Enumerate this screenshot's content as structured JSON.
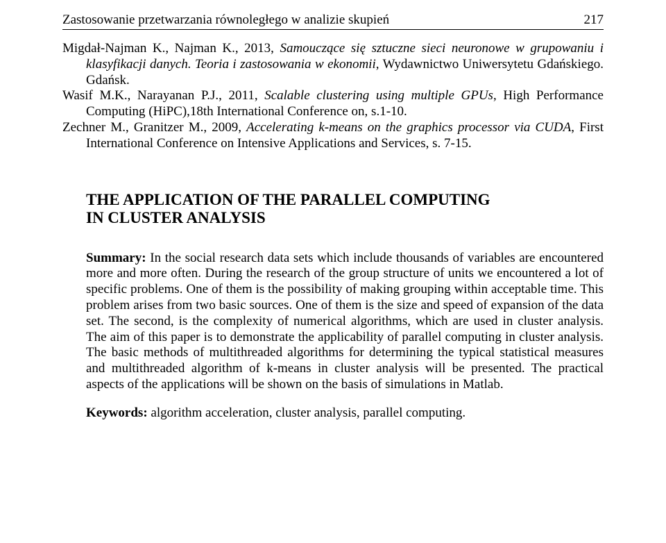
{
  "header": {
    "running_title": "Zastosowanie przetwarzania równoległego w analizie skupień",
    "page_number": "217"
  },
  "references": {
    "r1": {
      "authors": "Migdał-Najman K., Najman K., 2013, ",
      "title": "Samouczące się sztuczne sieci neuronowe w grupowaniu i klasyfikacji danych. Teoria i zastosowania w ekonomii",
      "tail": ", Wydawnictwo Uniwersytetu Gdańskiego. Gdańsk."
    },
    "r2": {
      "authors": "Wasif M.K., Narayanan P.J., 2011, ",
      "title": "Scalable clustering using multiple GPUs",
      "tail": ", High Performance Computing (HiPC),18th International Conference on, s.1-10."
    },
    "r3": {
      "authors": "Zechner M., Granitzer M., 2009, ",
      "title": "Accelerating k-means on the graphics processor via CUDA",
      "tail": ", First International Conference on Intensive Applications and Services, s. 7-15."
    }
  },
  "section": {
    "title_line1": "THE APPLICATION OF THE PARALLEL COMPUTING",
    "title_line2": "IN CLUSTER ANALYSIS"
  },
  "abstract": {
    "label": "Summary:",
    "text": " In the social research data sets which include thousands of variables are encountered more and more often. During the research of the group structure of units we encountered a lot of specific problems. One of them is the possibility of making grouping within acceptable time. This problem arises from two basic sources. One of them is the size and speed of expansion of the data set. The second, is the complexity of numerical algorithms, which are used in cluster analysis. The aim of this paper is to demonstrate the applicability of parallel computing in cluster analysis. The basic methods of multithreaded algorithms for determining the typical statistical measures and multithreaded algorithm of k-means in cluster analysis will be presented. The practical aspects of the applications will be shown on the basis of simulations in Matlab."
  },
  "keywords": {
    "label": "Keywords:",
    "text": " algorithm acceleration, cluster analysis, parallel computing."
  }
}
